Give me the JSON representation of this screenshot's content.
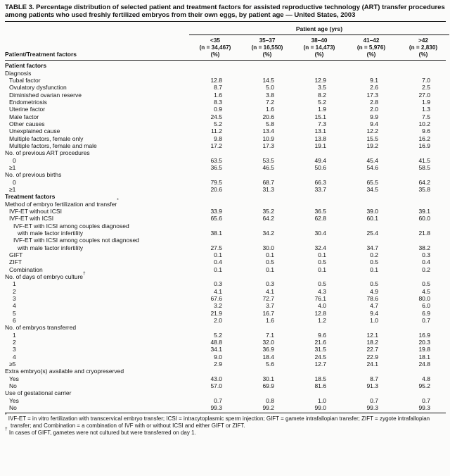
{
  "title": "TABLE 3. Percentage distribution of selected patient and treatment factors for assisted reproductive technology (ART) transfer procedures among patients who used freshly fertilized embryos from their own eggs, by patient age — United States, 2003",
  "table": {
    "corner_label": "Patient/Treatment factors",
    "age_span_label": "Patient age (yrs)",
    "columns": [
      {
        "age": "<35",
        "n": "(n = 34,467)",
        "pct": "(%)"
      },
      {
        "age": "35–37",
        "n": "(n = 16,550)",
        "pct": "(%)"
      },
      {
        "age": "38–40",
        "n": "(n = 14,473)",
        "pct": "(%)"
      },
      {
        "age": "41–42",
        "n": "(n = 5,976)",
        "pct": "(%)"
      },
      {
        "age": ">42",
        "n": "(n = 2,830)",
        "pct": "(%)"
      }
    ],
    "rows": [
      {
        "type": "section",
        "label": "Patient factors"
      },
      {
        "type": "sub",
        "label": "Diagnosis"
      },
      {
        "type": "item",
        "label": "Tubal factor",
        "values": [
          "12.8",
          "14.5",
          "12.9",
          "9.1",
          "7.0"
        ]
      },
      {
        "type": "item",
        "label": "Ovulatory dysfunction",
        "values": [
          "8.7",
          "5.0",
          "3.5",
          "2.6",
          "2.5"
        ]
      },
      {
        "type": "item",
        "label": "Diminished ovarian reserve",
        "values": [
          "1.6",
          "3.8",
          "8.2",
          "17.3",
          "27.0"
        ]
      },
      {
        "type": "item",
        "label": "Endometriosis",
        "values": [
          "8.3",
          "7.2",
          "5.2",
          "2.8",
          "1.9"
        ]
      },
      {
        "type": "item",
        "label": "Uterine factor",
        "values": [
          "0.9",
          "1.6",
          "1.9",
          "2.0",
          "1.3"
        ]
      },
      {
        "type": "item",
        "label": "Male factor",
        "values": [
          "24.5",
          "20.6",
          "15.1",
          "9.9",
          "7.5"
        ]
      },
      {
        "type": "item",
        "label": "Other causes",
        "values": [
          "5.2",
          "5.8",
          "7.3",
          "9.4",
          "10.2"
        ]
      },
      {
        "type": "item",
        "label": "Unexplained cause",
        "values": [
          "11.2",
          "13.4",
          "13.1",
          "12.2",
          "9.6"
        ]
      },
      {
        "type": "item",
        "label": "Multiple factors, female only",
        "values": [
          "9.8",
          "10.9",
          "13.8",
          "15.5",
          "16.2"
        ]
      },
      {
        "type": "item",
        "label": "Multiple factors, female and male",
        "values": [
          "17.2",
          "17.3",
          "19.1",
          "19.2",
          "16.9"
        ]
      },
      {
        "type": "sub",
        "label": "No. of previous ART procedures"
      },
      {
        "type": "num",
        "label": "0",
        "values": [
          "63.5",
          "53.5",
          "49.4",
          "45.4",
          "41.5"
        ]
      },
      {
        "type": "item",
        "label": "≥1",
        "values": [
          "36.5",
          "46.5",
          "50.6",
          "54.6",
          "58.5"
        ]
      },
      {
        "type": "sub",
        "label": "No. of previous births"
      },
      {
        "type": "num",
        "label": "0",
        "values": [
          "79.5",
          "68.7",
          "66.3",
          "65.5",
          "64.2"
        ]
      },
      {
        "type": "item",
        "label": "≥1",
        "values": [
          "20.6",
          "31.3",
          "33.7",
          "34.5",
          "35.8"
        ]
      },
      {
        "type": "section",
        "label": "Treatment factors"
      },
      {
        "type": "sub",
        "label": "Method of embryo fertilization and transfer",
        "sup": "*"
      },
      {
        "type": "item",
        "label": "IVF-ET without ICSI",
        "values": [
          "33.9",
          "35.2",
          "36.5",
          "39.0",
          "39.1"
        ]
      },
      {
        "type": "item",
        "label": "IVF-ET with ICSI",
        "values": [
          "65.6",
          "64.2",
          "62.8",
          "60.1",
          "60.0"
        ]
      },
      {
        "type": "item2",
        "label": "IVF-ET with ICSI among couples diagnosed"
      },
      {
        "type": "cont",
        "label": "with male factor infertility",
        "values": [
          "38.1",
          "34.2",
          "30.4",
          "25.4",
          "21.8"
        ]
      },
      {
        "type": "item2",
        "label": "IVF-ET with ICSI among couples not diagnosed"
      },
      {
        "type": "cont",
        "label": "with male factor infertility",
        "values": [
          "27.5",
          "30.0",
          "32.4",
          "34.7",
          "38.2"
        ]
      },
      {
        "type": "item",
        "label": "GIFT",
        "values": [
          "0.1",
          "0.1",
          "0.1",
          "0.2",
          "0.3"
        ]
      },
      {
        "type": "item",
        "label": "ZIFT",
        "values": [
          "0.4",
          "0.5",
          "0.5",
          "0.5",
          "0.4"
        ]
      },
      {
        "type": "item",
        "label": "Combination",
        "values": [
          "0.1",
          "0.1",
          "0.1",
          "0.1",
          "0.2"
        ]
      },
      {
        "type": "sub",
        "label": "No. of days of embryo culture",
        "sup": "†"
      },
      {
        "type": "num",
        "label": "1",
        "values": [
          "0.3",
          "0.3",
          "0.5",
          "0.5",
          "0.5"
        ]
      },
      {
        "type": "num",
        "label": "2",
        "values": [
          "4.1",
          "4.1",
          "4.3",
          "4.9",
          "4.5"
        ]
      },
      {
        "type": "num",
        "label": "3",
        "values": [
          "67.6",
          "72.7",
          "76.1",
          "78.6",
          "80.0"
        ]
      },
      {
        "type": "num",
        "label": "4",
        "values": [
          "3.2",
          "3.7",
          "4.0",
          "4.7",
          "6.0"
        ]
      },
      {
        "type": "num",
        "label": "5",
        "values": [
          "21.9",
          "16.7",
          "12.8",
          "9.4",
          "6.9"
        ]
      },
      {
        "type": "num",
        "label": "6",
        "values": [
          "2.0",
          "1.6",
          "1.2",
          "1.0",
          "0.7"
        ]
      },
      {
        "type": "sub",
        "label": "No. of embryos transferred"
      },
      {
        "type": "num",
        "label": "1",
        "values": [
          "5.2",
          "7.1",
          "9.6",
          "12.1",
          "16.9"
        ]
      },
      {
        "type": "num",
        "label": "2",
        "values": [
          "48.8",
          "32.0",
          "21.6",
          "18.2",
          "20.3"
        ]
      },
      {
        "type": "num",
        "label": "3",
        "values": [
          "34.1",
          "36.9",
          "31.5",
          "22.7",
          "19.8"
        ]
      },
      {
        "type": "num",
        "label": "4",
        "values": [
          "9.0",
          "18.4",
          "24.5",
          "22.9",
          "18.1"
        ]
      },
      {
        "type": "item",
        "label": "≥5",
        "values": [
          "2.9",
          "5.6",
          "12.7",
          "24.1",
          "24.8"
        ]
      },
      {
        "type": "sub",
        "label": "Extra embryo(s) available and cryopreserved"
      },
      {
        "type": "item",
        "label": "Yes",
        "values": [
          "43.0",
          "30.1",
          "18.5",
          "8.7",
          "4.8"
        ]
      },
      {
        "type": "item",
        "label": "No",
        "values": [
          "57.0",
          "69.9",
          "81.6",
          "91.3",
          "95.2"
        ]
      },
      {
        "type": "sub",
        "label": "Use of gestational carrier"
      },
      {
        "type": "item",
        "label": "Yes",
        "values": [
          "0.7",
          "0.8",
          "1.0",
          "0.7",
          "0.7"
        ]
      },
      {
        "type": "item",
        "label": "No",
        "values": [
          "99.3",
          "99.2",
          "99.0",
          "99.3",
          "99.3"
        ]
      }
    ]
  },
  "footnotes": [
    {
      "marker": "*",
      "text": "IVF-ET = in vitro fertilization with transcervical embryo transfer; ICSI = intracytoplasmic sperm injection; GIFT = gamete intrafallopian transfer; ZIFT = zygote intrafallopian transfer; and Combination = a combination of IVF with or without ICSI and either GIFT or ZIFT."
    },
    {
      "marker": "†",
      "text": "In cases of GIFT, gametes were not cultured but were transferred on day 1."
    }
  ]
}
